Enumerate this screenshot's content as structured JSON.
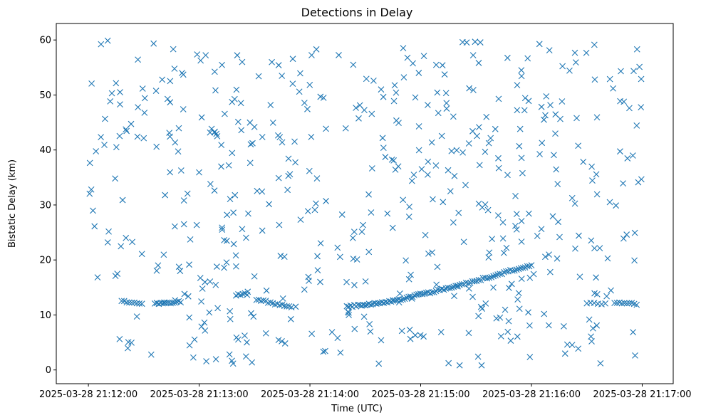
{
  "chart_data": {
    "type": "scatter",
    "title": "Detections in Delay",
    "xlabel": "Time (UTC)",
    "ylabel": "Bistatic Delay (km)",
    "marker": "x",
    "color": "#1f77b4",
    "xlim_seconds": [
      -17.4,
      316.8
    ],
    "ylim": [
      -2.5,
      63
    ],
    "x_unit": "seconds after 2025-03-28 21:12:00",
    "xticks": [
      {
        "t": 0,
        "label": "2025-03-28 21:12:00"
      },
      {
        "t": 60,
        "label": "2025-03-28 21:13:00"
      },
      {
        "t": 120,
        "label": "2025-03-28 21:14:00"
      },
      {
        "t": 180,
        "label": "2025-03-28 21:15:00"
      },
      {
        "t": 240,
        "label": "2025-03-28 21:16:00"
      },
      {
        "t": 300,
        "label": "2025-03-28 21:17:00"
      }
    ],
    "yticks": [
      0,
      10,
      20,
      30,
      40,
      50,
      60
    ],
    "target_tracks": [
      {
        "t_start": 18,
        "t_end": 29,
        "delay_start": 12.5,
        "delay_end": 12.0,
        "count": 9
      },
      {
        "t_start": 36,
        "t_end": 50,
        "delay_start": 12.0,
        "delay_end": 12.4,
        "count": 14
      },
      {
        "t_start": 80,
        "t_end": 86,
        "delay_start": 13.6,
        "delay_end": 13.8,
        "count": 6
      },
      {
        "t_start": 91,
        "t_end": 110,
        "delay_start": 12.8,
        "delay_end": 11.4,
        "count": 16
      },
      {
        "t_start": 140,
        "t_end": 165,
        "delay_start": 11.5,
        "delay_end": 12.5,
        "count": 26
      },
      {
        "t_start": 165,
        "t_end": 200,
        "delay_start": 12.5,
        "delay_end": 15.3,
        "count": 34
      },
      {
        "t_start": 200,
        "t_end": 240,
        "delay_start": 15.3,
        "delay_end": 19.1,
        "count": 36
      },
      {
        "t_start": 270,
        "t_end": 280,
        "delay_start": 12.1,
        "delay_end": 12.0,
        "count": 6
      },
      {
        "t_start": 285,
        "t_end": 297,
        "delay_start": 12.2,
        "delay_end": 12.0,
        "count": 10
      }
    ],
    "clutter": {
      "count": 520,
      "t_range": [
        0,
        300
      ],
      "delay_range": [
        0.8,
        60.0
      ]
    }
  }
}
